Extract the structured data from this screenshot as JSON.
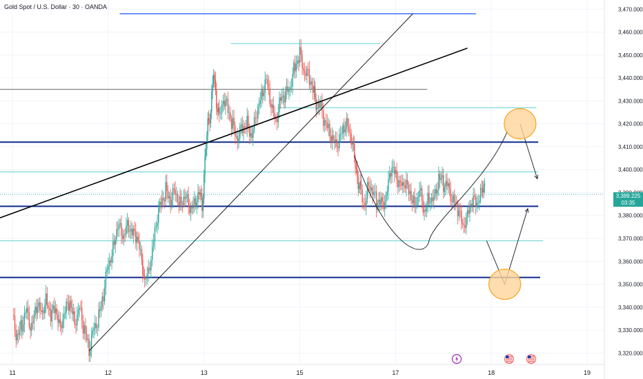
{
  "title": "Gold Spot / U.S. Dollar · 30 · OANDA",
  "last_price": "3,389.225",
  "countdown": "03:35",
  "colors": {
    "up": "#26a69a",
    "down": "#ef5350",
    "navy": "#0d2a8c",
    "teal": "#5fd0d0",
    "blue": "#2962ff",
    "circle_fill": "#ffd59a",
    "circle_stroke": "#f5a623"
  },
  "chart_data": {
    "type": "candlestick",
    "title": "Gold Spot / U.S. Dollar · 30 · OANDA",
    "ylim": [
      3315,
      3474
    ],
    "yticks": [
      "3,470.000",
      "3,460.000",
      "3,450.000",
      "3,440.000",
      "3,430.000",
      "3,420.000",
      "3,410.000",
      "3,400.000",
      "3,390.000",
      "3,380.000",
      "3,370.000",
      "3,360.000",
      "3,350.000",
      "3,340.000",
      "3,330.000",
      "3,320.000"
    ],
    "ytick_values": [
      3470,
      3460,
      3450,
      3440,
      3430,
      3420,
      3410,
      3400,
      3390,
      3380,
      3370,
      3360,
      3350,
      3340,
      3330,
      3320
    ],
    "xticks": [
      "11",
      "12",
      "13",
      "15",
      "17",
      "18",
      "19"
    ],
    "xtick_values": [
      0,
      100,
      200,
      300,
      400,
      500,
      600
    ],
    "x_range": [
      -13,
      618
    ],
    "series_close": [
      [
        0,
        3335
      ],
      [
        5,
        3327
      ],
      [
        10,
        3333
      ],
      [
        15,
        3338
      ],
      [
        20,
        3331
      ],
      [
        25,
        3341
      ],
      [
        30,
        3337
      ],
      [
        35,
        3344
      ],
      [
        40,
        3336
      ],
      [
        45,
        3339
      ],
      [
        50,
        3332
      ],
      [
        55,
        3338
      ],
      [
        60,
        3342
      ],
      [
        65,
        3334
      ],
      [
        70,
        3339
      ],
      [
        75,
        3330
      ],
      [
        80,
        3322
      ],
      [
        85,
        3330
      ],
      [
        90,
        3336
      ],
      [
        95,
        3346
      ],
      [
        100,
        3358
      ],
      [
        105,
        3366
      ],
      [
        110,
        3376
      ],
      [
        115,
        3370
      ],
      [
        120,
        3377
      ],
      [
        125,
        3372
      ],
      [
        130,
        3370
      ],
      [
        135,
        3362
      ],
      [
        138,
        3350
      ],
      [
        142,
        3357
      ],
      [
        146,
        3365
      ],
      [
        150,
        3378
      ],
      [
        155,
        3385
      ],
      [
        160,
        3391
      ],
      [
        165,
        3387
      ],
      [
        170,
        3390
      ],
      [
        175,
        3385
      ],
      [
        180,
        3389
      ],
      [
        185,
        3382
      ],
      [
        190,
        3386
      ],
      [
        195,
        3390
      ],
      [
        198,
        3384
      ],
      [
        201,
        3404
      ],
      [
        204,
        3420
      ],
      [
        207,
        3426
      ],
      [
        210,
        3442
      ],
      [
        213,
        3430
      ],
      [
        216,
        3422
      ],
      [
        220,
        3432
      ],
      [
        225,
        3426
      ],
      [
        230,
        3419
      ],
      [
        235,
        3414
      ],
      [
        240,
        3418
      ],
      [
        245,
        3420
      ],
      [
        250,
        3415
      ],
      [
        255,
        3424
      ],
      [
        260,
        3433
      ],
      [
        265,
        3440
      ],
      [
        270,
        3427
      ],
      [
        275,
        3422
      ],
      [
        280,
        3431
      ],
      [
        285,
        3432
      ],
      [
        290,
        3437
      ],
      [
        295,
        3445
      ],
      [
        300,
        3450
      ],
      [
        305,
        3443
      ],
      [
        310,
        3440
      ],
      [
        315,
        3433
      ],
      [
        318,
        3428
      ],
      [
        322,
        3427
      ],
      [
        326,
        3420
      ],
      [
        330,
        3418
      ],
      [
        335,
        3413
      ],
      [
        340,
        3410
      ],
      [
        345,
        3419
      ],
      [
        350,
        3420
      ],
      [
        355,
        3410
      ],
      [
        358,
        3403
      ],
      [
        361,
        3394
      ],
      [
        364,
        3390
      ],
      [
        368,
        3385
      ],
      [
        372,
        3395
      ],
      [
        376,
        3390
      ],
      [
        380,
        3386
      ],
      [
        385,
        3385
      ],
      [
        390,
        3388
      ],
      [
        395,
        3400
      ],
      [
        400,
        3398
      ],
      [
        405,
        3394
      ],
      [
        410,
        3393
      ],
      [
        415,
        3390
      ],
      [
        420,
        3385
      ],
      [
        425,
        3390
      ],
      [
        430,
        3382
      ],
      [
        435,
        3388
      ],
      [
        440,
        3386
      ],
      [
        445,
        3397
      ],
      [
        450,
        3394
      ],
      [
        455,
        3392
      ],
      [
        460,
        3387
      ],
      [
        465,
        3383
      ],
      [
        470,
        3375
      ],
      [
        475,
        3381
      ],
      [
        480,
        3386
      ],
      [
        485,
        3385
      ],
      [
        490,
        3392
      ],
      [
        493,
        3394
      ]
    ],
    "horizontal_levels": [
      {
        "price": 3412,
        "x": [
          -13,
          549
        ],
        "color": "#0d2a8c",
        "width": 2
      },
      {
        "price": 3384,
        "x": [
          -13,
          549
        ],
        "color": "#0d2a8c",
        "width": 2
      },
      {
        "price": 3353,
        "x": [
          -13,
          551
        ],
        "color": "#0d2a8c",
        "width": 2
      },
      {
        "price": 3468,
        "x": [
          112,
          484
        ],
        "color": "#2962ff",
        "width": 1.3
      },
      {
        "price": 3455,
        "x": [
          228,
          384
        ],
        "color": "#5fd0d0",
        "width": 1
      },
      {
        "price": 3427,
        "x": [
          277,
          547
        ],
        "color": "#5fd0d0",
        "width": 1
      },
      {
        "price": 3399,
        "x": [
          -13,
          549
        ],
        "color": "#5fd0d0",
        "width": 1
      },
      {
        "price": 3369,
        "x": [
          -13,
          554
        ],
        "color": "#5fd0d0",
        "width": 1
      },
      {
        "price": 3435,
        "x": [
          -13,
          433
        ],
        "color": "#333333",
        "width": 0.8
      }
    ],
    "trendlines": [
      {
        "from": [
          -13,
          3379
        ],
        "to": [
          475,
          3453
        ],
        "color": "#000000",
        "width": 1.6
      },
      {
        "from": [
          80,
          3321
        ],
        "to": [
          418,
          3468
        ],
        "color": "#000000",
        "width": 0.9
      }
    ],
    "projection_arrows": [
      {
        "points": [
          [
            530,
            3420
          ],
          [
            548,
            3396
          ]
        ]
      },
      {
        "points": [
          [
            495,
            3369
          ],
          [
            514,
            3350
          ],
          [
            538,
            3383
          ]
        ]
      }
    ],
    "target_circles": [
      {
        "x": 530,
        "price": 3420
      },
      {
        "x": 514,
        "price": 3350
      }
    ],
    "bottom_icons": [
      "lightning-icon",
      "us-flag-icon",
      "us-flag-icon"
    ]
  }
}
